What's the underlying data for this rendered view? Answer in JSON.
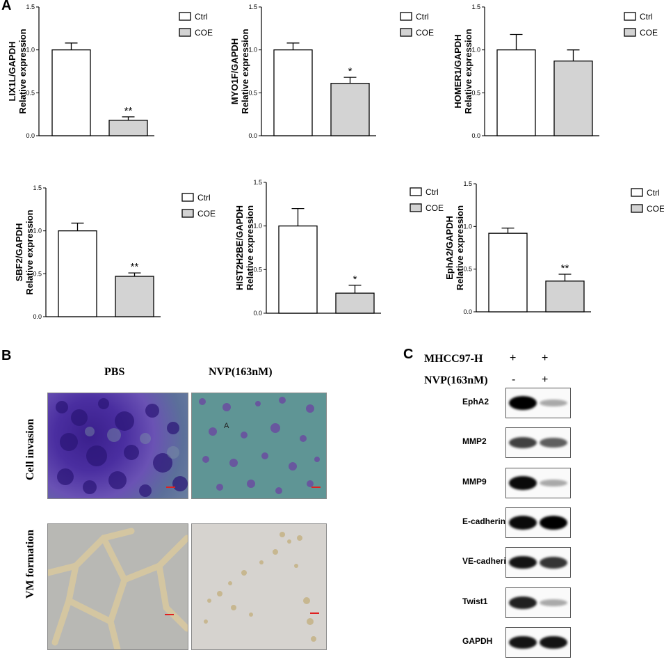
{
  "panels": {
    "a": "A",
    "b": "B",
    "c": "C"
  },
  "legend": {
    "ctrl": "Ctrl",
    "coe": "COE"
  },
  "colors": {
    "ctrl": "#ffffff",
    "coe": "#d3d3d3"
  },
  "chart_data": [
    {
      "type": "bar",
      "ylabel_gene": "LIX1L/GAPDH",
      "ylabel": "Relative expression",
      "ylim": [
        0,
        1.5
      ],
      "yticks": [
        "0.0",
        "0.5",
        "1.0",
        "1.5"
      ],
      "categories": [
        "Ctrl",
        "COE"
      ],
      "values": [
        1.0,
        0.18
      ],
      "errors": [
        0.08,
        0.04
      ],
      "sig": [
        "",
        "**"
      ]
    },
    {
      "type": "bar",
      "ylabel_gene": "MYO1F/GAPDH",
      "ylabel": "Relative expression",
      "ylim": [
        0,
        1.5
      ],
      "yticks": [
        "0.0",
        "0.5",
        "1.0",
        "1.5"
      ],
      "categories": [
        "Ctrl",
        "COE"
      ],
      "values": [
        1.0,
        0.61
      ],
      "errors": [
        0.08,
        0.07
      ],
      "sig": [
        "",
        "*"
      ]
    },
    {
      "type": "bar",
      "ylabel_gene": "HOMER1/GAPDH",
      "ylabel": "Relative expression",
      "ylim": [
        0,
        1.5
      ],
      "yticks": [
        "0.0",
        "0.5",
        "1.0",
        "1.5"
      ],
      "categories": [
        "Ctrl",
        "COE"
      ],
      "values": [
        1.0,
        0.87
      ],
      "errors": [
        0.18,
        0.13
      ],
      "sig": [
        "",
        ""
      ]
    },
    {
      "type": "bar",
      "ylabel_gene": "SBF2/GAPDH",
      "ylabel": "Relative expression",
      "ylim": [
        0,
        1.5
      ],
      "yticks": [
        "0.0",
        "0.5",
        "1.0",
        "1.5"
      ],
      "categories": [
        "Ctrl",
        "COE"
      ],
      "values": [
        1.0,
        0.47
      ],
      "errors": [
        0.09,
        0.04
      ],
      "sig": [
        "",
        "**"
      ]
    },
    {
      "type": "bar",
      "ylabel_gene": "HIST2H2BE/GAPDH",
      "ylabel": "Relative expression",
      "ylim": [
        0,
        1.5
      ],
      "yticks": [
        "0.0",
        "0.5",
        "1.0",
        "1.5"
      ],
      "categories": [
        "Ctrl",
        "COE"
      ],
      "values": [
        1.0,
        0.23
      ],
      "errors": [
        0.2,
        0.09
      ],
      "sig": [
        "",
        "*"
      ]
    },
    {
      "type": "bar",
      "ylabel_gene": "EphA2/GAPDH",
      "ylabel": "Relative expression",
      "ylim": [
        0,
        1.5
      ],
      "yticks": [
        "0.0",
        "0.5",
        "1.0",
        "1.5"
      ],
      "categories": [
        "Ctrl",
        "COE"
      ],
      "values": [
        0.92,
        0.36
      ],
      "errors": [
        0.06,
        0.08
      ],
      "sig": [
        "",
        "**"
      ]
    }
  ],
  "panel_b": {
    "columns": [
      "PBS",
      "NVP(163nM)"
    ],
    "rows": [
      "Cell invasion",
      "VM formation"
    ],
    "photo_marker": "A"
  },
  "panel_c": {
    "conditions": [
      {
        "label": "MHCC97-H",
        "lane1": "+",
        "lane2": "+"
      },
      {
        "label": "NVP(163nM)",
        "lane1": "-",
        "lane2": "+"
      }
    ],
    "proteins": [
      {
        "name": "EphA2",
        "lane1": 1.0,
        "lane2": 0.2
      },
      {
        "name": "MMP2",
        "lane1": 0.7,
        "lane2": 0.55
      },
      {
        "name": "MMP9",
        "lane1": 0.95,
        "lane2": 0.2
      },
      {
        "name": "E-cadherin",
        "lane1": 0.95,
        "lane2": 1.0
      },
      {
        "name": "VE-cadherin",
        "lane1": 0.9,
        "lane2": 0.75
      },
      {
        "name": "Twist1",
        "lane1": 0.85,
        "lane2": 0.2
      },
      {
        "name": "GAPDH",
        "lane1": 0.9,
        "lane2": 0.9
      }
    ]
  }
}
